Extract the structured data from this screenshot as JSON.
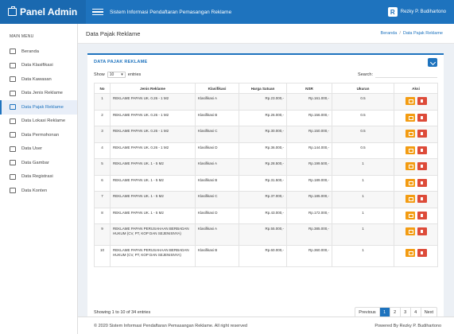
{
  "brand": {
    "title": "Panel Admin"
  },
  "topbar": {
    "title": "Sistem Informasi Pendaftaran Pemasangan Reklame",
    "user_initial": "R",
    "user_name": "Rezky P. Budihartono"
  },
  "sidebar": {
    "heading": "MAIN MENU",
    "items": [
      {
        "label": "Beranda",
        "icon": "home-icon"
      },
      {
        "label": "Data Klasifikasi",
        "icon": "list-icon"
      },
      {
        "label": "Data Kawasan",
        "icon": "map-icon"
      },
      {
        "label": "Data Jenis Reklame",
        "icon": "monitor-icon"
      },
      {
        "label": "Data Pajak Reklame",
        "icon": "folder-icon"
      },
      {
        "label": "Data Lokasi Reklame",
        "icon": "location-icon"
      },
      {
        "label": "Data Permohonan",
        "icon": "document-icon"
      },
      {
        "label": "Data User",
        "icon": "user-icon"
      },
      {
        "label": "Data Gambar",
        "icon": "image-icon"
      },
      {
        "label": "Data Registrasi",
        "icon": "registration-icon"
      },
      {
        "label": "Data Konten",
        "icon": "content-icon"
      }
    ]
  },
  "page": {
    "title": "Data Pajak Reklame",
    "crumb_home": "Beranda",
    "crumb_sep": "/",
    "crumb_current": "Data Pajak Reklame"
  },
  "card": {
    "title": "DATA PAJAK REKLAME"
  },
  "controls": {
    "show": "Show",
    "entries_value": "10",
    "entries": "entries",
    "search": "Search:"
  },
  "table": {
    "headers": [
      "No",
      "Jenis Reklame",
      "Klasifikasi",
      "Harga Satuan",
      "NSR",
      "Ukuran",
      "Aksi"
    ],
    "rows": [
      {
        "no": "1",
        "jenis": "REKLAME PAPAN UK. 0.26 - 1 M2",
        "klas": "Klasifikasi A",
        "harga": "Rp.23.000,-",
        "nsr": "Rp.161.000,-",
        "ukuran": "0.5"
      },
      {
        "no": "2",
        "jenis": "REKLAME PAPAN UK. 0.26 - 1 M2",
        "klas": "Klasifikasi B",
        "harga": "Rp.26.000,-",
        "nsr": "Rp.156.000,-",
        "ukuran": "0.5"
      },
      {
        "no": "3",
        "jenis": "REKLAME PAPAN UK. 0.26 - 1 M2",
        "klas": "Klasifikasi C",
        "harga": "Rp.30.000,-",
        "nsr": "Rp.150.000,-",
        "ukuran": "0.5"
      },
      {
        "no": "4",
        "jenis": "REKLAME PAPAN UK. 0.26 - 1 M2",
        "klas": "Klasifikasi D",
        "harga": "Rp.36.000,-",
        "nsr": "Rp.144.000,-",
        "ukuran": "0.5"
      },
      {
        "no": "5",
        "jenis": "REKLAME PAPAN UK. 1 - 5 M2",
        "klas": "Klasifikasi A",
        "harga": "Rp.28.500,-",
        "nsr": "Rp.199.500,-",
        "ukuran": "1"
      },
      {
        "no": "6",
        "jenis": "REKLAME PAPAN UK. 1 - 5 M2",
        "klas": "Klasifikasi B",
        "harga": "Rp.31.500,-",
        "nsr": "Rp.189.000,-",
        "ukuran": "1"
      },
      {
        "no": "7",
        "jenis": "REKLAME PAPAN UK. 1 - 5 M2",
        "klas": "Klasifikasi C",
        "harga": "Rp.37.000,-",
        "nsr": "Rp.185.000,-",
        "ukuran": "1"
      },
      {
        "no": "8",
        "jenis": "REKLAME PAPAN UK. 1 - 5 M2",
        "klas": "Klasifikasi D",
        "harga": "Rp.43.000,-",
        "nsr": "Rp.172.000,-",
        "ukuran": "1"
      },
      {
        "no": "9",
        "jenis": "REKLAME PAPAN PERUSAHAAN BERBADAN HUKUM (CV, PT, KOP DAN SEJENISNYA)",
        "klas": "Klasifikasi A",
        "harga": "Rp.55.000,-",
        "nsr": "Rp.385.000,-",
        "ukuran": "1"
      },
      {
        "no": "10",
        "jenis": "REKLAME PAPAN PERUSAHAAN BERBADAN HUKUM (CV, PT, KOP DAN SEJENISNYA)",
        "klas": "Klasifikasi B",
        "harga": "Rp.60.000,-",
        "nsr": "Rp.360.000,-",
        "ukuran": "1"
      }
    ]
  },
  "info": "Showing 1 to 10 of 34 entries",
  "pager": {
    "prev": "Previous",
    "pages": [
      "1",
      "2",
      "3",
      "4"
    ],
    "next": "Next"
  },
  "footer": {
    "left": "© 2020 Sistem Informasi Pendaftaran Pemasangan Reklame. All right reserved",
    "right": "Powered By Rezky P. Budihartono"
  },
  "colors": {
    "primary": "#1e73be",
    "edit": "#f39c12",
    "delete": "#dd4b39"
  }
}
